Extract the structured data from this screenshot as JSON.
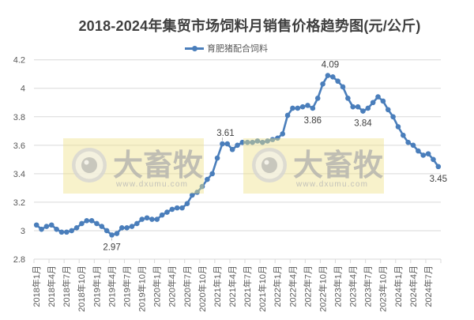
{
  "title": "2018-2024年集贸市场饲料月销售价格趋势图(元/公斤)",
  "legend": [
    {
      "label": "育肥猪配合饲料",
      "color": "#4a7ebb",
      "icon": "line-with-circle-marker"
    }
  ],
  "watermark": {
    "brand": "大畜牧",
    "url": "www.dxumu.com",
    "icon": "circle-eye-logo",
    "background": "#efe28c"
  },
  "chart_data": {
    "type": "line",
    "title": "2018-2024年集贸市场饲料月销售价格趋势图(元/公斤)",
    "xlabel": "",
    "ylabel": "",
    "ylim": [
      2.8,
      4.2
    ],
    "yticks": [
      2.8,
      3,
      3.2,
      3.4,
      3.6,
      3.8,
      4,
      4.2
    ],
    "ytick_labels": [
      "2.8",
      "3",
      "3.2",
      "3.4",
      "3.6",
      "3.8",
      "4",
      "4.2"
    ],
    "grid": true,
    "legend_position": "top",
    "categories": [
      "2018年1月",
      "2018年2月",
      "2018年3月",
      "2018年4月",
      "2018年5月",
      "2018年6月",
      "2018年7月",
      "2018年8月",
      "2018年9月",
      "2018年10月",
      "2018年11月",
      "2018年12月",
      "2019年1月",
      "2019年2月",
      "2019年3月",
      "2019年4月",
      "2019年5月",
      "2019年6月",
      "2019年7月",
      "2019年8月",
      "2019年9月",
      "2019年10月",
      "2019年11月",
      "2019年12月",
      "2020年1月",
      "2020年2月",
      "2020年3月",
      "2020年4月",
      "2020年5月",
      "2020年6月",
      "2020年7月",
      "2020年8月",
      "2020年9月",
      "2020年10月",
      "2020年11月",
      "2020年12月",
      "2021年1月",
      "2021年2月",
      "2021年3月",
      "2021年4月",
      "2021年5月",
      "2021年6月",
      "2021年7月",
      "2021年8月",
      "2021年9月",
      "2021年10月",
      "2021年11月",
      "2021年12月",
      "2022年1月",
      "2022年2月",
      "2022年3月",
      "2022年4月",
      "2022年5月",
      "2022年6月",
      "2022年7月",
      "2022年8月",
      "2022年9月",
      "2022年10月",
      "2022年11月",
      "2022年12月",
      "2023年1月",
      "2023年2月",
      "2023年3月",
      "2023年4月",
      "2023年5月",
      "2023年6月",
      "2023年7月",
      "2023年8月",
      "2023年9月",
      "2023年10月",
      "2023年11月",
      "2023年12月",
      "2024年1月",
      "2024年2月",
      "2024年3月",
      "2024年4月",
      "2024年5月",
      "2024年6月",
      "2024年7月",
      "2024年8月",
      "2024年9月"
    ],
    "xtick_labels": [
      "2018年1月",
      "2018年4月",
      "2018年7月",
      "2018年10月",
      "2019年1月",
      "2019年4月",
      "2019年7月",
      "2019年10月",
      "2020年1月",
      "2020年4月",
      "2020年7月",
      "2020年10月",
      "2021年1月",
      "2021年4月",
      "2021年7月",
      "2021年10月",
      "2022年1月",
      "2022年4月",
      "2022年7月",
      "2022年10月",
      "2023年1月",
      "2023年4月",
      "2023年7月",
      "2023年10月",
      "2024年1月",
      "2024年4月",
      "2024年7月"
    ],
    "series": [
      {
        "name": "育肥猪配合饲料",
        "color": "#4a7ebb",
        "marker": "circle",
        "values": [
          3.04,
          3.01,
          3.03,
          3.04,
          3.01,
          2.99,
          2.99,
          3.0,
          3.02,
          3.05,
          3.07,
          3.07,
          3.05,
          3.03,
          3.0,
          2.97,
          2.98,
          3.02,
          3.02,
          3.03,
          3.05,
          3.08,
          3.09,
          3.08,
          3.08,
          3.11,
          3.13,
          3.15,
          3.16,
          3.16,
          3.19,
          3.25,
          3.27,
          3.31,
          3.36,
          3.4,
          3.51,
          3.61,
          3.61,
          3.57,
          3.6,
          3.62,
          3.62,
          3.62,
          3.63,
          3.62,
          3.63,
          3.64,
          3.65,
          3.68,
          3.81,
          3.86,
          3.86,
          3.87,
          3.88,
          3.86,
          3.93,
          4.03,
          4.09,
          4.08,
          4.05,
          4.01,
          3.93,
          3.87,
          3.87,
          3.84,
          3.86,
          3.9,
          3.94,
          3.91,
          3.85,
          3.8,
          3.73,
          3.67,
          3.62,
          3.6,
          3.56,
          3.53,
          3.54,
          3.5,
          3.45
        ]
      }
    ],
    "annotations": [
      {
        "category": "2019年4月",
        "text": "2.97",
        "position": "below",
        "leader": true
      },
      {
        "category": "2021年2月",
        "text": "3.61",
        "position": "above",
        "leader": true,
        "dx": 4
      },
      {
        "category": "2022年8月",
        "text": "3.86",
        "position": "below"
      },
      {
        "category": "2022年11月",
        "text": "4.09",
        "position": "above",
        "dx": 3
      },
      {
        "category": "2023年6月",
        "text": "3.84",
        "position": "below"
      },
      {
        "category": "2024年9月",
        "text": "3.45",
        "position": "below"
      }
    ]
  }
}
